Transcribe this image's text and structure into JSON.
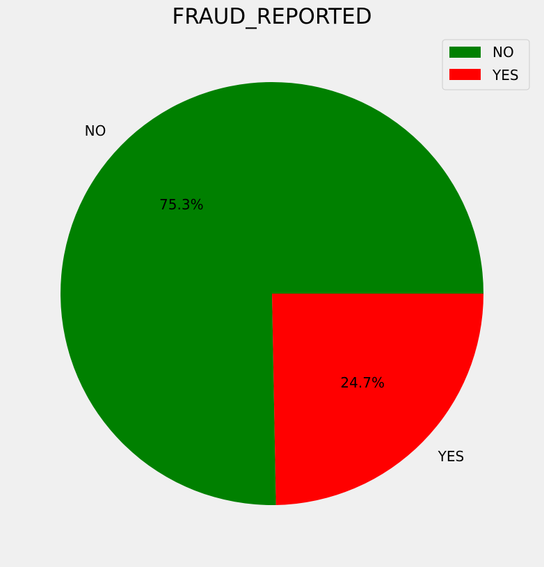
{
  "chart_data": {
    "type": "pie",
    "title": "FRAUD_REPORTED",
    "categories": [
      "NO",
      "YES"
    ],
    "values": [
      75.3,
      24.7
    ],
    "value_labels": [
      "75.3%",
      "24.7%"
    ],
    "colors": [
      "#008000",
      "#ff0000"
    ],
    "start_angle_deg": 0,
    "direction": "counterclockwise",
    "legend": {
      "placement": "top-right",
      "entries": [
        "NO",
        "YES"
      ]
    }
  }
}
